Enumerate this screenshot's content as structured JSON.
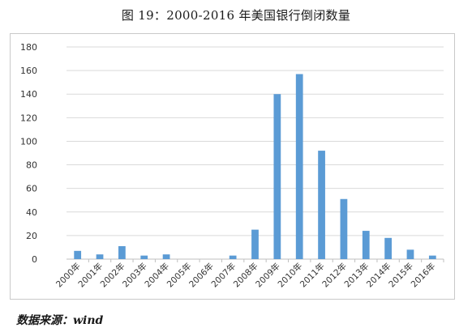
{
  "figure": {
    "title": "图 19：2000-2016 年美国银行倒闭数量",
    "source": "数据来源：wind"
  },
  "chart_data": {
    "type": "bar",
    "categories": [
      "2000年",
      "2001年",
      "2002年",
      "2003年",
      "2004年",
      "2005年",
      "2006年",
      "2007年",
      "2008年",
      "2009年",
      "2010年",
      "2011年",
      "2012年",
      "2013年",
      "2014年",
      "2015年",
      "2016年"
    ],
    "values": [
      7,
      4,
      11,
      3,
      4,
      0,
      0,
      3,
      25,
      140,
      157,
      92,
      51,
      24,
      18,
      8,
      3
    ],
    "ylim": [
      0,
      180
    ],
    "yticks": [
      0,
      20,
      40,
      60,
      80,
      100,
      120,
      140,
      160,
      180
    ],
    "grid": true,
    "legend": "none",
    "bar_color": "#5b9bd5",
    "grid_color": "#d9d9d9",
    "axis_color": "#bfbfbf"
  }
}
